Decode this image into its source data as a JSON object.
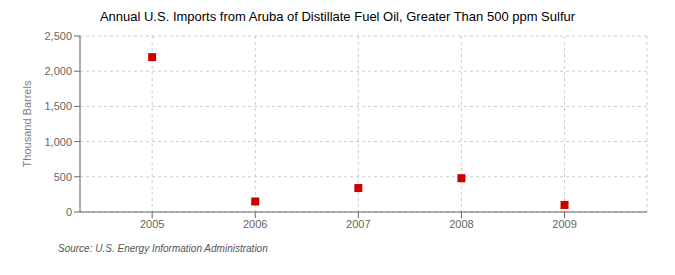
{
  "chart_data": {
    "type": "scatter",
    "title": "Annual U.S. Imports from Aruba of Distillate Fuel Oil, Greater Than 500 ppm Sulfur",
    "ylabel": "Thousand Barrels",
    "source": "Source: U.S. Energy Information Administration",
    "x": [
      2005,
      2006,
      2007,
      2008,
      2009
    ],
    "values": [
      2200,
      150,
      340,
      480,
      100
    ],
    "xlim": [
      2004.3,
      2009.8
    ],
    "xticks": [
      2005,
      2006,
      2007,
      2008,
      2009
    ],
    "ylim": [
      0,
      2500
    ],
    "yticks": [
      0,
      500,
      {
        "value": 1000,
        "label": "1,000"
      },
      {
        "value": 1500,
        "label": "1,500"
      },
      {
        "value": 2000,
        "label": "2,000"
      },
      {
        "value": 2500,
        "label": "2,500"
      }
    ],
    "color": "#cc0000",
    "marker": "square",
    "grid": true
  }
}
